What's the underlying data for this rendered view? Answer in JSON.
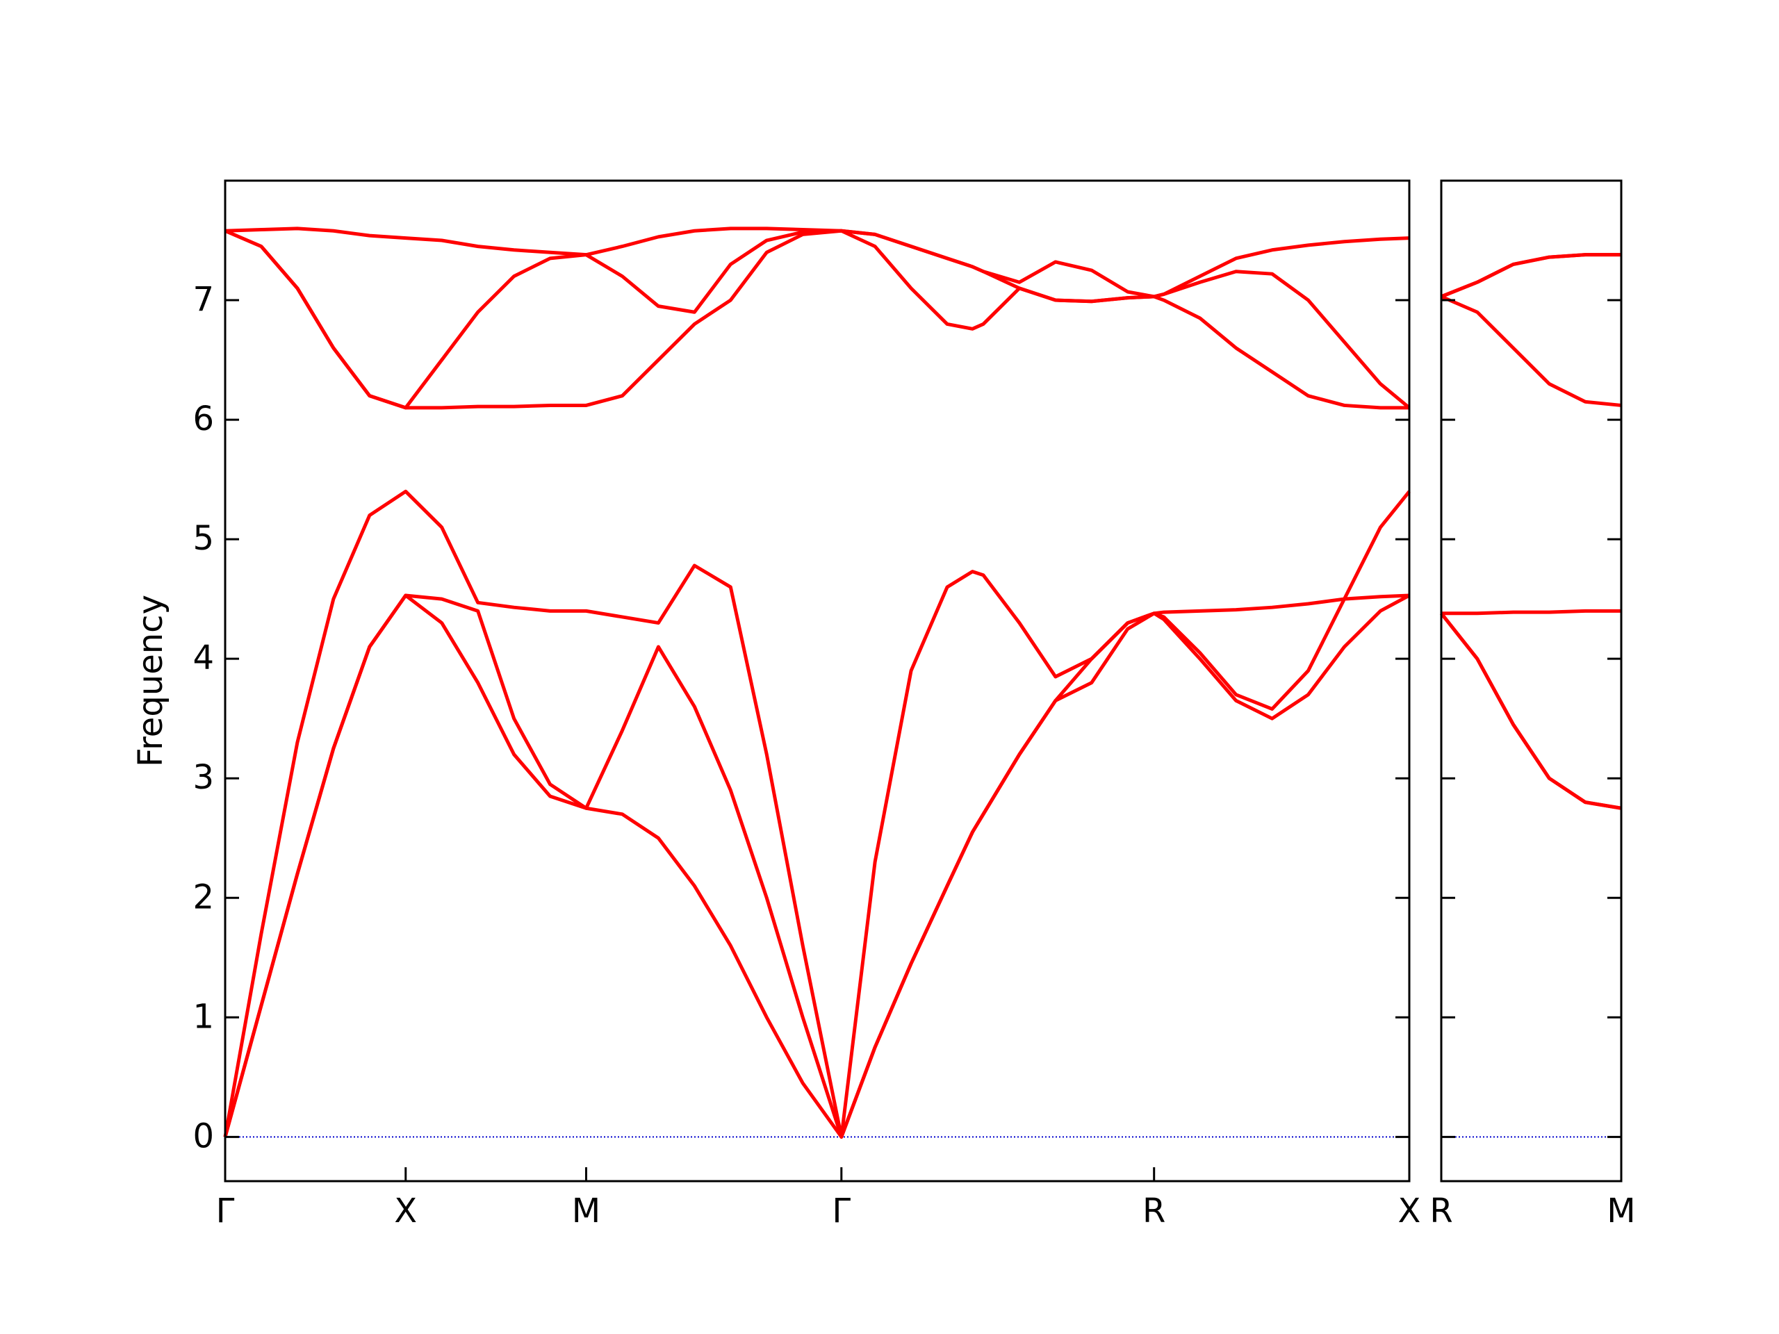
{
  "chart_data": [
    {
      "type": "line",
      "ylabel": "Frequency",
      "x": [
        0,
        0.1,
        0.2,
        0.3,
        0.4,
        0.5,
        0.6,
        0.7,
        0.8,
        0.9,
        1.0,
        1.1,
        1.2,
        1.3,
        1.4,
        1.5,
        1.6,
        1.707,
        1.8,
        1.9,
        2.0,
        2.07,
        2.1,
        2.2,
        2.3,
        2.4,
        2.5,
        2.573,
        2.6,
        2.7,
        2.8,
        2.9,
        3.0,
        3.1,
        3.2,
        3.28
      ],
      "series": [
        {
          "color": "#ff0000",
          "values": [
            0,
            1.1,
            2.2,
            3.25,
            4.1,
            4.53,
            4.3,
            3.8,
            3.2,
            2.85,
            2.75,
            2.7,
            2.5,
            2.1,
            1.6,
            1.0,
            0.45,
            0,
            0.75,
            1.45,
            2.1,
            2.55,
            2.7,
            3.2,
            3.65,
            3.8,
            4.25,
            4.38,
            4.33,
            4.0,
            3.65,
            3.5,
            3.7,
            4.1,
            4.4,
            4.53
          ]
        },
        {
          "color": "#ff0000",
          "values": [
            0,
            1.1,
            2.2,
            3.25,
            4.1,
            4.53,
            4.5,
            4.4,
            3.5,
            2.95,
            2.75,
            3.4,
            4.1,
            3.6,
            2.9,
            2.0,
            1.0,
            0,
            0.75,
            1.45,
            2.1,
            2.55,
            2.7,
            3.2,
            3.65,
            4.0,
            4.3,
            4.38,
            4.35,
            4.05,
            3.7,
            3.58,
            3.9,
            4.5,
            4.52,
            4.53
          ]
        },
        {
          "color": "#ff0000",
          "values": [
            0,
            1.7,
            3.3,
            4.5,
            5.2,
            5.4,
            5.1,
            4.47,
            4.43,
            4.4,
            4.4,
            4.35,
            4.3,
            4.78,
            4.6,
            3.2,
            1.6,
            0,
            2.3,
            3.9,
            4.6,
            4.73,
            4.7,
            4.3,
            3.85,
            4.0,
            4.3,
            4.38,
            4.39,
            4.4,
            4.41,
            4.43,
            4.46,
            4.5,
            5.1,
            5.4
          ]
        },
        {
          "color": "#ff0000",
          "values": [
            7.58,
            7.45,
            7.1,
            6.6,
            6.2,
            6.1,
            6.1,
            6.11,
            6.11,
            6.12,
            6.12,
            6.2,
            6.5,
            6.8,
            7.0,
            7.4,
            7.55,
            7.58,
            7.45,
            7.1,
            6.8,
            6.76,
            6.8,
            7.1,
            7.0,
            6.99,
            7.02,
            7.03,
            7.0,
            6.85,
            6.6,
            6.4,
            6.2,
            6.12,
            6.1,
            6.1
          ]
        },
        {
          "color": "#ff0000",
          "values": [
            7.58,
            7.45,
            7.1,
            6.6,
            6.2,
            6.1,
            6.5,
            6.9,
            7.2,
            7.35,
            7.38,
            7.2,
            6.95,
            6.9,
            7.3,
            7.5,
            7.57,
            7.58,
            7.55,
            7.45,
            7.35,
            7.28,
            7.24,
            7.1,
            7.0,
            6.99,
            7.02,
            7.03,
            7.05,
            7.15,
            7.24,
            7.22,
            7.0,
            6.65,
            6.3,
            6.1
          ]
        },
        {
          "color": "#ff0000",
          "values": [
            7.58,
            7.59,
            7.6,
            7.58,
            7.54,
            7.52,
            7.5,
            7.45,
            7.42,
            7.4,
            7.38,
            7.45,
            7.53,
            7.58,
            7.6,
            7.6,
            7.59,
            7.58,
            7.55,
            7.45,
            7.35,
            7.28,
            7.24,
            7.15,
            7.32,
            7.25,
            7.07,
            7.03,
            7.05,
            7.2,
            7.35,
            7.42,
            7.46,
            7.49,
            7.51,
            7.52
          ]
        }
      ],
      "xlim": [
        0,
        3.28
      ],
      "ylim": [
        -0.37,
        8.0
      ],
      "xticks": [
        {
          "value": 0,
          "label": "Γ"
        },
        {
          "value": 0.5,
          "label": "X"
        },
        {
          "value": 1.0,
          "label": "M"
        },
        {
          "value": 1.707,
          "label": "Γ"
        },
        {
          "value": 2.573,
          "label": "R"
        },
        {
          "value": 3.28,
          "label": "X"
        }
      ],
      "yticks": [
        0,
        1,
        2,
        3,
        4,
        5,
        6,
        7
      ],
      "ytick_labels": true,
      "hline": {
        "y": 0,
        "color": "#0000cd"
      }
    },
    {
      "type": "line",
      "x": [
        3.28,
        3.38,
        3.48,
        3.58,
        3.68,
        3.78
      ],
      "series": [
        {
          "color": "#ff0000",
          "values": [
            4.38,
            4.0,
            3.45,
            3.0,
            2.8,
            2.75
          ]
        },
        {
          "color": "#ff0000",
          "values": [
            4.38,
            4.0,
            3.45,
            3.0,
            2.8,
            2.75
          ]
        },
        {
          "color": "#ff0000",
          "values": [
            4.38,
            4.38,
            4.39,
            4.39,
            4.4,
            4.4
          ]
        },
        {
          "color": "#ff0000",
          "values": [
            7.03,
            6.9,
            6.6,
            6.3,
            6.15,
            6.12
          ]
        },
        {
          "color": "#ff0000",
          "values": [
            7.03,
            7.15,
            7.3,
            7.36,
            7.38,
            7.38
          ]
        },
        {
          "color": "#ff0000",
          "values": [
            7.03,
            7.15,
            7.3,
            7.36,
            7.38,
            7.38
          ]
        }
      ],
      "xlim": [
        3.28,
        3.78
      ],
      "ylim": [
        -0.37,
        8.0
      ],
      "xticks": [
        {
          "value": 3.28,
          "label": "R"
        },
        {
          "value": 3.78,
          "label": "M"
        }
      ],
      "yticks": [
        0,
        1,
        2,
        3,
        4,
        5,
        6,
        7
      ],
      "ytick_labels": false,
      "hline": {
        "y": 0,
        "color": "#0000cd"
      }
    }
  ]
}
